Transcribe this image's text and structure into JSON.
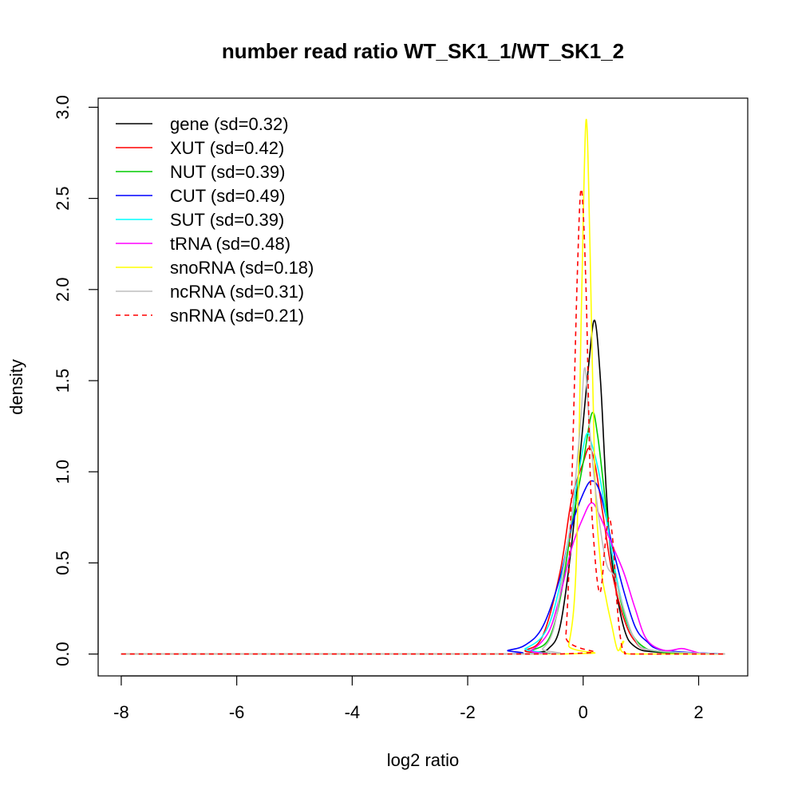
{
  "chart_data": {
    "type": "line",
    "title": "number read ratio WT_SK1_1/WT_SK1_2",
    "xlabel": "log2 ratio",
    "ylabel": "density",
    "xlim": [
      -8.4,
      2.85
    ],
    "ylim": [
      -0.12,
      3.05
    ],
    "xticks": [
      -8,
      -6,
      -4,
      -2,
      0,
      2
    ],
    "yticks": [
      0.0,
      0.5,
      1.0,
      1.5,
      2.0,
      2.5,
      3.0
    ],
    "xtick_labels": [
      "-8",
      "-6",
      "-4",
      "-2",
      "0",
      "2"
    ],
    "ytick_labels": [
      "0.0",
      "0.5",
      "1.0",
      "1.5",
      "2.0",
      "2.5",
      "3.0"
    ],
    "grid": false,
    "legend_position": "top-left",
    "series": [
      {
        "name": "gene (sd=0.32)",
        "color": "#000000",
        "dash": "solid",
        "points": [
          [
            -8,
            0
          ],
          [
            -1.2,
            0
          ],
          [
            -0.8,
            0.01
          ],
          [
            -0.6,
            0.03
          ],
          [
            -0.4,
            0.15
          ],
          [
            -0.2,
            0.6
          ],
          [
            -0.05,
            1.1
          ],
          [
            0.1,
            1.6
          ],
          [
            0.2,
            1.83
          ],
          [
            0.3,
            1.5
          ],
          [
            0.4,
            0.9
          ],
          [
            0.5,
            0.5
          ],
          [
            0.7,
            0.15
          ],
          [
            0.9,
            0.04
          ],
          [
            1.3,
            0.01
          ],
          [
            2.45,
            0
          ]
        ]
      },
      {
        "name": "XUT (sd=0.42)",
        "color": "#ff0000",
        "dash": "solid",
        "points": [
          [
            -8,
            0
          ],
          [
            -1.3,
            0
          ],
          [
            -1.0,
            0.02
          ],
          [
            -0.7,
            0.1
          ],
          [
            -0.4,
            0.45
          ],
          [
            -0.2,
            0.85
          ],
          [
            0.0,
            1.05
          ],
          [
            0.1,
            1.13
          ],
          [
            0.2,
            1.05
          ],
          [
            0.35,
            0.75
          ],
          [
            0.5,
            0.45
          ],
          [
            0.7,
            0.2
          ],
          [
            0.9,
            0.07
          ],
          [
            1.2,
            0.02
          ],
          [
            2.45,
            0
          ]
        ]
      },
      {
        "name": "NUT (sd=0.39)",
        "color": "#00cc00",
        "dash": "solid",
        "points": [
          [
            -8,
            0
          ],
          [
            -1.2,
            0
          ],
          [
            -0.9,
            0.02
          ],
          [
            -0.6,
            0.08
          ],
          [
            -0.4,
            0.3
          ],
          [
            -0.2,
            0.7
          ],
          [
            0.0,
            1.05
          ],
          [
            0.15,
            1.32
          ],
          [
            0.25,
            1.2
          ],
          [
            0.4,
            0.8
          ],
          [
            0.55,
            0.45
          ],
          [
            0.75,
            0.18
          ],
          [
            1.0,
            0.05
          ],
          [
            1.4,
            0.01
          ],
          [
            2.45,
            0
          ]
        ]
      },
      {
        "name": "CUT (sd=0.49)",
        "color": "#0000ff",
        "dash": "solid",
        "points": [
          [
            -8,
            0
          ],
          [
            -1.6,
            0
          ],
          [
            -1.3,
            0.02
          ],
          [
            -1.0,
            0.05
          ],
          [
            -0.7,
            0.15
          ],
          [
            -0.4,
            0.42
          ],
          [
            -0.2,
            0.7
          ],
          [
            0.0,
            0.88
          ],
          [
            0.15,
            0.95
          ],
          [
            0.3,
            0.88
          ],
          [
            0.5,
            0.6
          ],
          [
            0.7,
            0.35
          ],
          [
            0.9,
            0.15
          ],
          [
            1.1,
            0.07
          ],
          [
            1.4,
            0.02
          ],
          [
            2.45,
            0
          ]
        ]
      },
      {
        "name": "SUT (sd=0.39)",
        "color": "#00ffff",
        "dash": "solid",
        "points": [
          [
            -8,
            0
          ],
          [
            -1.3,
            0
          ],
          [
            -1.0,
            0.03
          ],
          [
            -0.7,
            0.1
          ],
          [
            -0.5,
            0.25
          ],
          [
            -0.3,
            0.55
          ],
          [
            -0.1,
            0.95
          ],
          [
            0.05,
            1.2
          ],
          [
            0.15,
            1.15
          ],
          [
            0.3,
            0.95
          ],
          [
            0.5,
            0.55
          ],
          [
            0.7,
            0.25
          ],
          [
            0.9,
            0.08
          ],
          [
            1.2,
            0.02
          ],
          [
            2.45,
            0
          ]
        ]
      },
      {
        "name": "tRNA (sd=0.48)",
        "color": "#ff00ff",
        "dash": "solid",
        "points": [
          [
            -8,
            0
          ],
          [
            -1.2,
            0
          ],
          [
            -0.9,
            0.02
          ],
          [
            -0.6,
            0.12
          ],
          [
            -0.4,
            0.32
          ],
          [
            -0.2,
            0.58
          ],
          [
            0.0,
            0.75
          ],
          [
            0.15,
            0.83
          ],
          [
            0.3,
            0.75
          ],
          [
            0.5,
            0.6
          ],
          [
            0.7,
            0.45
          ],
          [
            0.9,
            0.25
          ],
          [
            1.1,
            0.08
          ],
          [
            1.4,
            0.02
          ],
          [
            1.7,
            0.03
          ],
          [
            1.85,
            0.02
          ],
          [
            2.1,
            0.0
          ],
          [
            2.45,
            0
          ]
        ]
      },
      {
        "name": "snoRNA (sd=0.18)",
        "color": "#ffff00",
        "dash": "solid",
        "points": [
          [
            -8,
            0
          ],
          [
            -0.4,
            0
          ],
          [
            -0.25,
            0.05
          ],
          [
            -0.12,
            0.5
          ],
          [
            -0.03,
            1.9
          ],
          [
            0.05,
            2.93
          ],
          [
            0.12,
            2.2
          ],
          [
            0.2,
            1.0
          ],
          [
            0.3,
            0.5
          ],
          [
            0.4,
            0.3
          ],
          [
            0.5,
            0.15
          ],
          [
            0.6,
            0.02
          ],
          [
            0.7,
            0.07
          ],
          [
            0.8,
            0.0
          ],
          [
            2.45,
            0
          ]
        ]
      },
      {
        "name": "ncRNA (sd=0.31)",
        "color": "#bebebe",
        "dash": "solid",
        "points": [
          [
            -8,
            0
          ],
          [
            -1.0,
            0
          ],
          [
            -0.7,
            0.03
          ],
          [
            -0.5,
            0.15
          ],
          [
            -0.35,
            0.45
          ],
          [
            -0.2,
            0.75
          ],
          [
            -0.05,
            1.25
          ],
          [
            0.03,
            1.57
          ],
          [
            0.12,
            1.2
          ],
          [
            0.25,
            0.8
          ],
          [
            0.4,
            0.5
          ],
          [
            0.55,
            0.42
          ],
          [
            0.7,
            0.25
          ],
          [
            0.9,
            0.08
          ],
          [
            1.2,
            0.02
          ],
          [
            2.45,
            0
          ]
        ]
      },
      {
        "name": "snRNA (sd=0.21)",
        "color": "#ff0000",
        "dash": "dashed",
        "points": [
          [
            -8,
            0
          ],
          [
            -0.4,
            0
          ],
          [
            -0.3,
            0.1
          ],
          [
            -0.2,
            0.9
          ],
          [
            -0.1,
            2.1
          ],
          [
            -0.03,
            2.55
          ],
          [
            0.05,
            2.0
          ],
          [
            0.12,
            1.0
          ],
          [
            0.2,
            0.55
          ],
          [
            0.27,
            0.35
          ],
          [
            0.32,
            0.38
          ],
          [
            0.38,
            0.6
          ],
          [
            0.45,
            0.75
          ],
          [
            0.52,
            0.6
          ],
          [
            0.58,
            0.3
          ],
          [
            0.65,
            0.08
          ],
          [
            0.72,
            0.01
          ],
          [
            0.9,
            0.0
          ],
          [
            2.45,
            0
          ]
        ]
      }
    ]
  }
}
